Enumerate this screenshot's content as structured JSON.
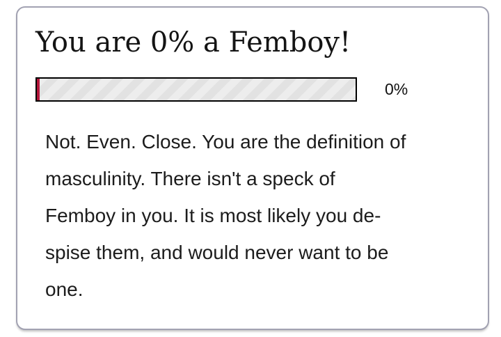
{
  "result": {
    "title": "You are 0% a Femboy!",
    "score_percent": 0,
    "score_label": "0%",
    "description": "Not. Even. Close. You are the definition of\nmasculinity. There isn't a speck of\nFemboy in you. It is most likely you de-\nspise them, and would never want to be\none."
  },
  "colors": {
    "progress_fill": "#b5173b",
    "progress_track_stripe_light": "#ededed",
    "progress_track_stripe_dark": "#e2e2e2",
    "progress_track_border": "#000000",
    "card_border": "#a2a2b2",
    "text_primary": "#1c1c1c"
  }
}
